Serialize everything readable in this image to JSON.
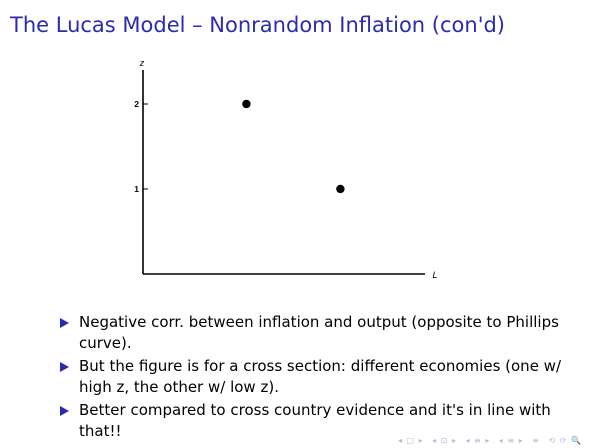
{
  "slide": {
    "title": "The Lucas Model – Nonrandom Inflation (con'd)"
  },
  "chart_data": {
    "type": "scatter",
    "xlabel": "L",
    "ylabel": "z",
    "ylim": [
      0,
      2.4
    ],
    "xlim": [
      0,
      3
    ],
    "y_ticks": [
      {
        "value": 1,
        "label": "1"
      },
      {
        "value": 2,
        "label": "2"
      }
    ],
    "points": [
      {
        "x": 1.1,
        "y": 2
      },
      {
        "x": 2.1,
        "y": 1
      }
    ],
    "grid": false
  },
  "bullets": [
    "Negative corr. between inflation and output (opposite to Phillips curve).",
    "But the figure is for a cross section: different economies (one w/ high z, the other w/ low z).",
    "Better compared to cross country evidence and it's in line with that!!"
  ],
  "nav": {
    "first_frame": "◂ □ ▸",
    "prev_next_frame": "◂ ⊡ ▸",
    "prev_next_subsection": "◂ ≡ ▸",
    "prev_next_section": "◂ ≡ ▸",
    "align": "≡",
    "search": "⟲ ⟳ 🔍"
  },
  "colors": {
    "title": "#2b2bb0",
    "bullet_marker": "#2b2bb0",
    "nav": "#b9b9d6"
  }
}
